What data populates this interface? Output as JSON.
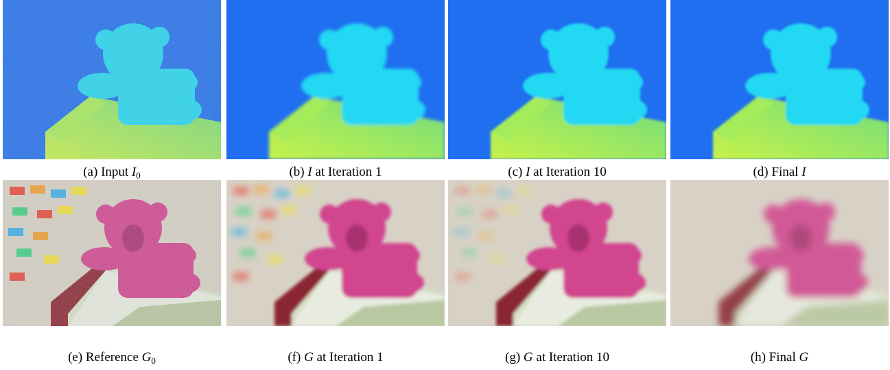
{
  "panels": [
    {
      "caption": {
        "before": "(a) Input ",
        "var": "I",
        "sub": "0"
      }
    },
    {
      "caption": {
        "before": "(b) ",
        "var": "I",
        "after": " at Iteration 1"
      }
    },
    {
      "caption": {
        "before": "(c) ",
        "var": "I",
        "after": " at Iteration 10"
      }
    },
    {
      "caption": {
        "before": "(d) Final ",
        "var": "I"
      }
    },
    {
      "caption": {
        "before": "(e) Reference ",
        "var": "G",
        "sub": "0"
      }
    },
    {
      "caption": {
        "before": "(f) ",
        "var": "G",
        "after": " at Iteration 1"
      }
    },
    {
      "caption": {
        "before": "(g) ",
        "var": "G",
        "after": " at Iteration 10"
      }
    },
    {
      "caption": {
        "before": "(h) Final ",
        "var": "G"
      }
    }
  ]
}
